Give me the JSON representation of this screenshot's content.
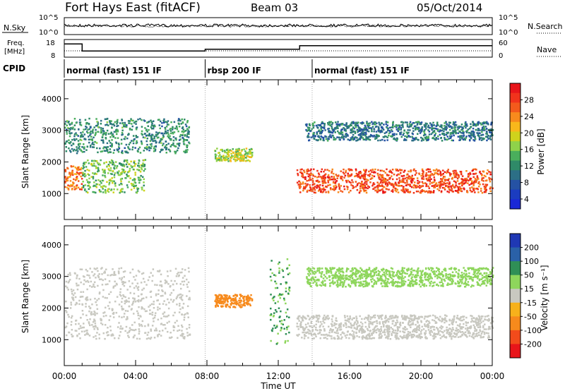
{
  "header": {
    "station": "Fort Hays East (fitACF)",
    "beam": "Beam 03",
    "date": "05/Oct/2014"
  },
  "noise_panel": {
    "left_label": "N.Sky",
    "right_label": "N.Search",
    "left_ticks": [
      "10^5",
      "10^0"
    ],
    "right_ticks": [
      "10^5",
      "10^0"
    ]
  },
  "freq_panel": {
    "left_label_top": "Freq.",
    "left_label_bottom": "[MHz]",
    "left_ticks": [
      "18",
      "8"
    ],
    "right_label": "Nave",
    "right_ticks": [
      "60",
      "0"
    ],
    "freq_steps": [
      {
        "t0": 0.0,
        "t1": 1.0,
        "mhz": 15.5
      },
      {
        "t0": 1.0,
        "t1": 7.9,
        "mhz": 11.5
      },
      {
        "t0": 7.9,
        "t1": 13.2,
        "mhz": 12.5
      },
      {
        "t0": 13.2,
        "t1": 24.0,
        "mhz": 14.5
      }
    ]
  },
  "cpid_panel": {
    "label": "CPID",
    "segments": [
      {
        "t0": 0.0,
        "t1": 7.9,
        "text": "normal (fast) 151 IF"
      },
      {
        "t0": 7.9,
        "t1": 13.9,
        "text": "rbsp 200 IF"
      },
      {
        "t0": 13.9,
        "t1": 24.0,
        "text": "normal (fast) 151 IF"
      }
    ]
  },
  "x_axis": {
    "label": "Time UT",
    "ticks": [
      "00:00",
      "04:00",
      "08:00",
      "12:00",
      "16:00",
      "20:00",
      "00:00"
    ]
  },
  "colorbars": {
    "power": {
      "title": "Power [dB]",
      "labels": [
        "28",
        "24",
        "20",
        "16",
        "12",
        "8",
        "4"
      ],
      "colors": [
        "#e8151a",
        "#f1331c",
        "#f35a1c",
        "#f88a1d",
        "#f9b71b",
        "#cfd21c",
        "#8fd24a",
        "#4aae5c",
        "#2f8a68",
        "#2c6f86",
        "#2552a4",
        "#1b3cc0",
        "#1a28d6"
      ]
    },
    "velocity": {
      "title": "Velocity [m s⁻¹]",
      "labels": [
        "200",
        "100",
        "50",
        "15",
        "-15",
        "-50",
        "-100",
        "-200"
      ],
      "colors": [
        "#1f38b4",
        "#2a61a8",
        "#2f8f56",
        "#8ed65c",
        "#c8c8c0",
        "#f7b11b",
        "#f78a1c",
        "#f24b1b",
        "#e8151a"
      ]
    }
  },
  "chart_data": [
    {
      "type": "heatmap",
      "title": "Power",
      "ylabel": "Slant Range [km]",
      "xlabel": "",
      "xlim": [
        0,
        24
      ],
      "ylim": [
        180,
        4600
      ],
      "ytick_labels": [
        "1000",
        "2000",
        "3000",
        "4000"
      ],
      "colorbar": "Power [dB]",
      "features": [
        {
          "name": "",
          "t0": 0.0,
          "t1": 1.0,
          "r0": 1150,
          "r1": 1900,
          "db": 24
        },
        {
          "name": "",
          "t0": 1.0,
          "t1": 4.5,
          "r0": 1050,
          "r1": 2100,
          "db": 14
        },
        {
          "name": "",
          "t0": 0.0,
          "t1": 7.0,
          "r0": 2300,
          "r1": 3400,
          "db": 10
        },
        {
          "name": "",
          "t0": 8.4,
          "t1": 10.5,
          "r0": 2050,
          "r1": 2450,
          "db": 16
        },
        {
          "name": "",
          "t0": 13.0,
          "t1": 24.0,
          "r0": 1050,
          "r1": 1800,
          "db": 26
        },
        {
          "name": "",
          "t0": 13.5,
          "t1": 24.0,
          "r0": 2700,
          "r1": 3300,
          "db": 8
        }
      ]
    },
    {
      "type": "heatmap",
      "title": "Velocity",
      "ylabel": "Slant Range [km]",
      "xlabel": "Time UT",
      "xlim": [
        0,
        24
      ],
      "ylim": [
        180,
        4600
      ],
      "ytick_labels": [
        "1000",
        "2000",
        "3000",
        "4000"
      ],
      "colorbar": "Velocity [m s⁻¹]",
      "features": [
        {
          "name": "",
          "t0": 0.0,
          "t1": 7.0,
          "r0": 1050,
          "r1": 3300,
          "v": 0
        },
        {
          "name": "",
          "t0": 8.4,
          "t1": 10.5,
          "r0": 2050,
          "r1": 2450,
          "v": -60
        },
        {
          "name": "",
          "t0": 11.5,
          "t1": 12.6,
          "r0": 800,
          "r1": 3700,
          "v": 30
        },
        {
          "name": "",
          "t0": 13.0,
          "t1": 24.0,
          "r0": 1050,
          "r1": 1800,
          "v": 0
        },
        {
          "name": "",
          "t0": 13.5,
          "t1": 24.0,
          "r0": 2700,
          "r1": 3300,
          "v": 20
        }
      ]
    }
  ]
}
